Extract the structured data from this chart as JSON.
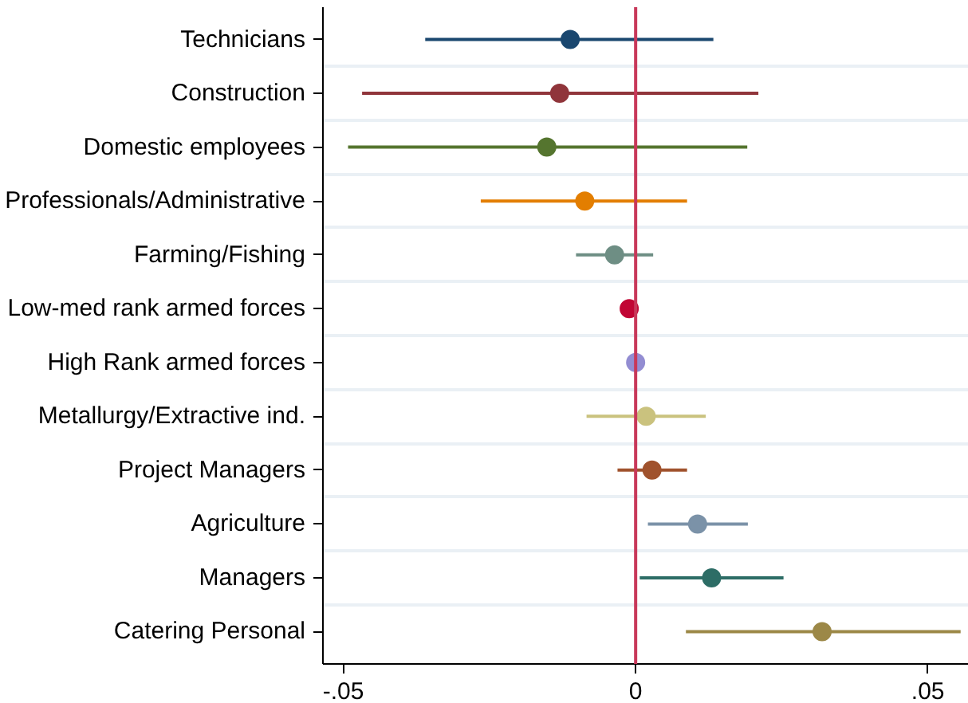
{
  "chart_data": {
    "type": "scatter",
    "orientation": "horizontal",
    "categories": [
      "Technicians",
      "Construction",
      "Domestic employees",
      "Professionals/Administrative",
      "Farming/Fishing",
      "Low-med rank armed forces",
      "High Rank armed forces",
      "Metallurgy/Extractive ind.",
      "Project Managers",
      "Agriculture",
      "Managers",
      "Catering Personal"
    ],
    "values": [
      -0.0112,
      -0.013,
      -0.0152,
      -0.0087,
      -0.0036,
      -0.0011,
      0.0,
      0.0018,
      0.0028,
      0.0106,
      0.013,
      0.0319
    ],
    "errors": [
      [
        -0.036,
        0.0133
      ],
      [
        -0.0468,
        0.021
      ],
      [
        -0.0492,
        0.0191
      ],
      [
        -0.0265,
        0.0088
      ],
      [
        -0.0102,
        0.003
      ],
      [
        -0.0026,
        0.0005
      ],
      null,
      [
        -0.0084,
        0.012
      ],
      [
        -0.0031,
        0.0088
      ],
      [
        0.0021,
        0.0192
      ],
      [
        0.0007,
        0.0253
      ],
      [
        0.0086,
        0.0556
      ]
    ],
    "colors": [
      "#1a476f",
      "#90353b",
      "#55752f",
      "#e37e00",
      "#6e8e84",
      "#c10534",
      "#938dd2",
      "#cac27e",
      "#a0522d",
      "#7b92a8",
      "#2d6d66",
      "#9c8847"
    ],
    "xlim": [
      -0.0535,
      0.057
    ],
    "xticks": [
      {
        "value": -0.05,
        "label": "-.05"
      },
      0,
      {
        "value": 0.05,
        "label": ".05"
      }
    ],
    "ref_lines": [
      {
        "axis": "x",
        "value": 0,
        "color": "#c8385a"
      }
    ],
    "grid": "y",
    "marker": "circle"
  }
}
